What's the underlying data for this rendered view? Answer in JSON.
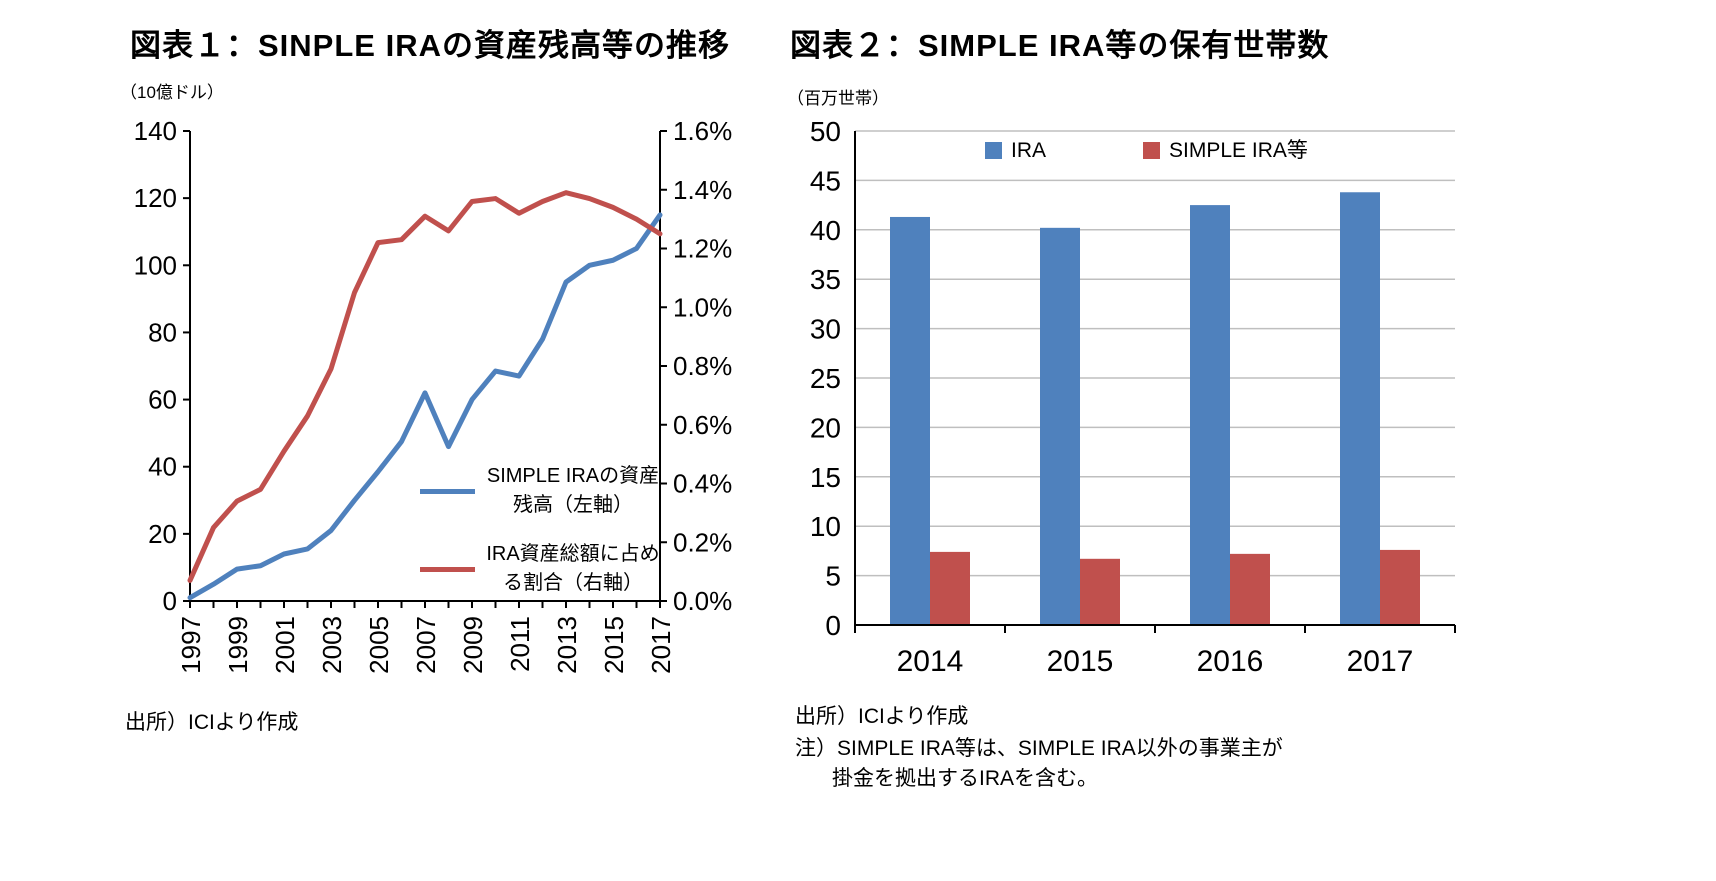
{
  "colors": {
    "blue": "#4F81BD",
    "red": "#C0504D",
    "grid": "#BFBFBF",
    "axis": "#000000"
  },
  "figure1": {
    "title": "図表１：SINPLE IRAの資産残高等の推移",
    "unit": "（10億ドル）",
    "source": "出所）ICIより作成",
    "legend": [
      {
        "label": "SIMPLE IRAの資産残高（左軸）",
        "color": "#4F81BD"
      },
      {
        "label": "IRA資産総額に占める割合（右軸）",
        "color": "#C0504D"
      }
    ]
  },
  "figure2": {
    "title": "図表２：SIMPLE IRA等の保有世帯数",
    "unit": "（百万世帯）",
    "source": "出所）ICIより作成",
    "note_lines": [
      "注）SIMPLE IRA等は、SIMPLE IRA以外の事業主が",
      "掛金を拠出するIRAを含む。"
    ],
    "legend": [
      {
        "label": "IRA",
        "color": "#4F81BD"
      },
      {
        "label": "SIMPLE IRA等",
        "color": "#C0504D"
      }
    ]
  },
  "chart_data": [
    {
      "type": "line",
      "title": "図表１：SINPLE IRAの資産残高等の推移",
      "x": [
        1997,
        1998,
        1999,
        2000,
        2001,
        2002,
        2003,
        2004,
        2005,
        2006,
        2007,
        2008,
        2009,
        2010,
        2011,
        2012,
        2013,
        2014,
        2015,
        2016,
        2017
      ],
      "x_tick_labels": [
        "1997",
        "1999",
        "2001",
        "2003",
        "2005",
        "2007",
        "2009",
        "2011",
        "2013",
        "2015",
        "2017"
      ],
      "series": [
        {
          "name": "SIMPLE IRAの資産残高（左軸）",
          "axis": "left",
          "color": "#4F81BD",
          "values": [
            1.0,
            5.0,
            9.5,
            10.5,
            14.0,
            15.5,
            21.0,
            30.0,
            38.5,
            47.5,
            62.0,
            46.0,
            60.0,
            68.5,
            67.0,
            78.0,
            95.0,
            100.0,
            101.5,
            105.0,
            115.0
          ]
        },
        {
          "name": "IRA資産総額に占める割合（右軸）",
          "axis": "right",
          "color": "#C0504D",
          "values": [
            0.07,
            0.25,
            0.34,
            0.38,
            0.51,
            0.63,
            0.79,
            1.05,
            1.22,
            1.23,
            1.31,
            1.26,
            1.36,
            1.37,
            1.32,
            1.36,
            1.39,
            1.37,
            1.34,
            1.3,
            1.25
          ]
        }
      ],
      "left_axis": {
        "min": 0,
        "max": 140,
        "step": 20,
        "ticks": [
          0,
          20,
          40,
          60,
          80,
          100,
          120,
          140
        ],
        "unit": "（10億ドル）"
      },
      "right_axis": {
        "min": 0.0,
        "max": 1.6,
        "step": 0.2,
        "tick_labels": [
          "0.0%",
          "0.2%",
          "0.4%",
          "0.6%",
          "0.8%",
          "1.0%",
          "1.2%",
          "1.4%",
          "1.6%"
        ]
      },
      "grid": false,
      "legend_position": "inside-lower-right"
    },
    {
      "type": "bar",
      "title": "図表２：SIMPLE IRA等の保有世帯数",
      "categories": [
        "2014",
        "2015",
        "2016",
        "2017"
      ],
      "series": [
        {
          "name": "IRA",
          "color": "#4F81BD",
          "values": [
            41.3,
            40.2,
            42.5,
            43.8
          ]
        },
        {
          "name": "SIMPLE IRA等",
          "color": "#C0504D",
          "values": [
            7.4,
            6.7,
            7.2,
            7.6
          ]
        }
      ],
      "ylim": [
        0,
        50
      ],
      "ystep": 5,
      "ylabel": "（百万世帯）",
      "grid": true,
      "legend_position": "top-inside"
    }
  ]
}
